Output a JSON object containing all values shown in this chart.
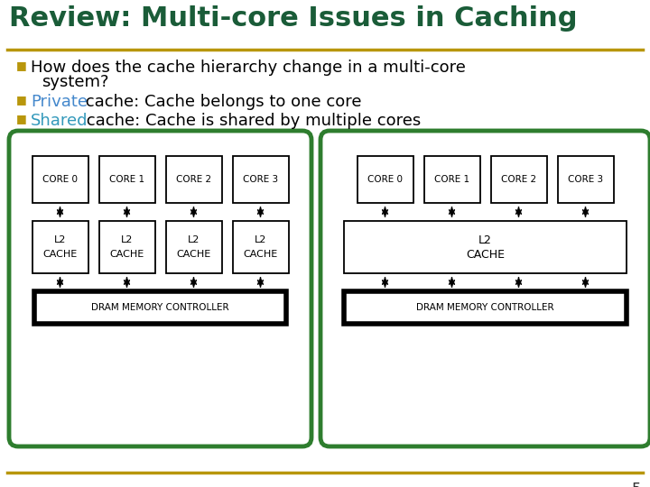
{
  "title": "Review: Multi-core Issues in Caching",
  "title_color": "#1a5c38",
  "title_fontsize": 22,
  "separator_color": "#b8960c",
  "bg_color": "#ffffff",
  "bullet_color": "#b8960c",
  "diagram_border_color": "#2e7d2e",
  "core_labels": [
    "CORE 0",
    "CORE 1",
    "CORE 2",
    "CORE 3"
  ],
  "page_number": "5",
  "private_word_color": "#4488cc",
  "shared_word_color": "#3399bb"
}
